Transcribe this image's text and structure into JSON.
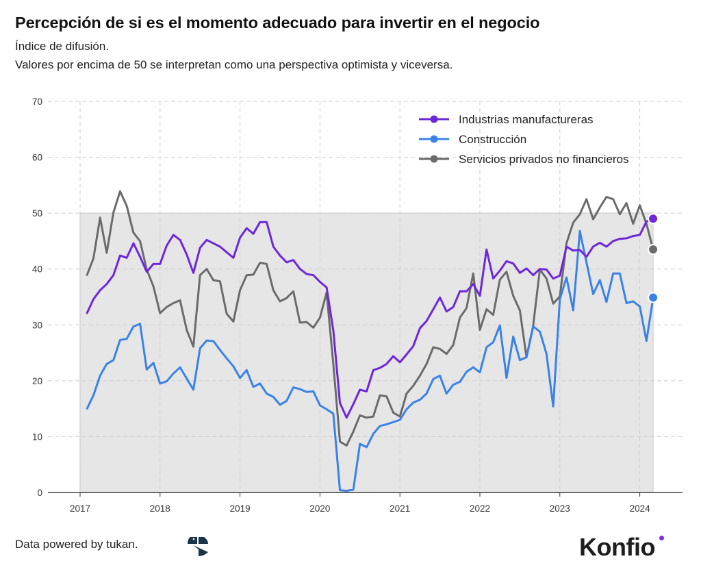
{
  "title": "Percepción de si es el momento adecuado para invertir en el negocio",
  "subtitle_1": "Índice de difusión.",
  "subtitle_2": "Valores por encima de 50 se interpretan como una perspectiva optimista y viceversa.",
  "footer": {
    "credit": "Data powered by tukan.",
    "tukan_logo": "tukan",
    "brand_logo": "Konfio"
  },
  "chart_data": {
    "type": "line",
    "title": "Percepción de si es el momento adecuado para invertir en el negocio",
    "xlabel": "",
    "ylabel": "",
    "ylim": [
      0,
      70
    ],
    "yticks": [
      0,
      10,
      20,
      30,
      40,
      50,
      60,
      70
    ],
    "xticks": [
      "2017",
      "2018",
      "2019",
      "2020",
      "2021",
      "2022",
      "2023",
      "2024"
    ],
    "xlim": [
      "2017-01",
      "2024-06"
    ],
    "grid": true,
    "legend_position": "top-right",
    "shaded_band": {
      "from": 0,
      "to": 50,
      "color": "#e6e6e6"
    },
    "x": [
      "2017-02",
      "2017-03",
      "2017-04",
      "2017-05",
      "2017-06",
      "2017-07",
      "2017-08",
      "2017-09",
      "2017-10",
      "2017-11",
      "2017-12",
      "2018-01",
      "2018-02",
      "2018-03",
      "2018-04",
      "2018-05",
      "2018-06",
      "2018-07",
      "2018-08",
      "2018-09",
      "2018-10",
      "2018-11",
      "2018-12",
      "2019-01",
      "2019-02",
      "2019-03",
      "2019-04",
      "2019-05",
      "2019-06",
      "2019-07",
      "2019-08",
      "2019-09",
      "2019-10",
      "2019-11",
      "2019-12",
      "2020-01",
      "2020-02",
      "2020-03",
      "2020-04",
      "2020-05",
      "2020-06",
      "2020-07",
      "2020-08",
      "2020-09",
      "2020-10",
      "2020-11",
      "2020-12",
      "2021-01",
      "2021-02",
      "2021-03",
      "2021-04",
      "2021-05",
      "2021-06",
      "2021-07",
      "2021-08",
      "2021-09",
      "2021-10",
      "2021-11",
      "2021-12",
      "2022-01",
      "2022-02",
      "2022-03",
      "2022-04",
      "2022-05",
      "2022-06",
      "2022-07",
      "2022-08",
      "2022-09",
      "2022-10",
      "2022-11",
      "2022-12",
      "2023-01",
      "2023-02",
      "2023-03",
      "2023-04",
      "2023-05",
      "2023-06",
      "2023-07",
      "2023-08",
      "2023-09",
      "2023-10",
      "2023-11",
      "2023-12",
      "2024-01",
      "2024-02",
      "2024-03"
    ],
    "series": [
      {
        "name": "Industrias manufactureras",
        "color": "#6d28d9",
        "values": [
          32.0,
          34.6,
          36.2,
          37.3,
          38.9,
          42.4,
          42.0,
          44.6,
          42.2,
          39.5,
          40.9,
          40.9,
          44.2,
          46.1,
          45.2,
          42.6,
          39.3,
          43.8,
          45.2,
          44.6,
          44.0,
          43.0,
          42.0,
          45.6,
          47.3,
          46.3,
          48.4,
          48.4,
          44.0,
          42.4,
          41.2,
          41.6,
          40.0,
          39.1,
          38.9,
          37.7,
          36.7,
          29.0,
          16.0,
          13.4,
          15.8,
          18.4,
          18.1,
          21.9,
          22.3,
          23.0,
          24.4,
          23.3,
          24.7,
          26.2,
          29.4,
          30.7,
          32.8,
          34.9,
          32.4,
          33.2,
          36.0,
          36.0,
          37.3,
          35.2,
          43.5,
          38.3,
          39.7,
          41.4,
          41.0,
          39.3,
          40.1,
          38.9,
          40.0,
          39.9,
          38.3,
          38.8,
          44.0,
          43.3,
          43.4,
          42.2,
          44.0,
          44.7,
          44.0,
          45.0,
          45.4,
          45.5,
          45.9,
          46.1,
          48.5,
          49.0
        ]
      },
      {
        "name": "Construcción",
        "color": "#3b82e6",
        "values": [
          14.9,
          17.4,
          20.9,
          23.0,
          23.7,
          27.3,
          27.5,
          29.7,
          30.2,
          22.0,
          23.2,
          19.5,
          19.9,
          21.3,
          22.4,
          20.4,
          18.4,
          25.8,
          27.2,
          27.1,
          25.5,
          24.0,
          22.6,
          20.5,
          21.9,
          18.9,
          19.5,
          17.7,
          17.1,
          15.7,
          16.4,
          18.8,
          18.5,
          18.0,
          18.1,
          15.6,
          14.9,
          14.1,
          0.4,
          0.3,
          0.5,
          8.7,
          8.1,
          10.5,
          11.9,
          12.2,
          12.6,
          13.0,
          14.9,
          16.1,
          16.6,
          17.7,
          20.3,
          20.9,
          17.7,
          19.3,
          19.8,
          21.6,
          22.4,
          21.5,
          26.0,
          26.9,
          29.9,
          20.5,
          27.9,
          23.7,
          24.2,
          29.7,
          28.8,
          24.8,
          15.4,
          34.6,
          38.5,
          32.6,
          46.8,
          41.2,
          35.5,
          38.0,
          34.1,
          39.2,
          39.2,
          33.9,
          34.2,
          33.3,
          27.1,
          34.9
        ]
      },
      {
        "name": "Servicios privados no financieros",
        "color": "#6b6b6b",
        "values": [
          38.8,
          41.9,
          49.2,
          42.9,
          50.1,
          53.9,
          51.3,
          46.5,
          45.0,
          39.9,
          36.9,
          32.1,
          33.2,
          33.9,
          34.4,
          29.1,
          26.1,
          38.9,
          40.0,
          38.0,
          37.8,
          32.0,
          30.6,
          36.2,
          38.9,
          39.0,
          41.1,
          40.9,
          36.2,
          34.2,
          34.8,
          36.0,
          30.4,
          30.5,
          29.5,
          31.3,
          35.8,
          23.0,
          9.1,
          8.4,
          10.9,
          13.8,
          13.4,
          13.6,
          17.4,
          17.2,
          14.3,
          13.6,
          17.7,
          19.1,
          20.9,
          23.0,
          26.0,
          25.7,
          24.8,
          26.4,
          31.3,
          33.0,
          39.2,
          29.1,
          32.8,
          31.8,
          38.1,
          39.5,
          35.2,
          32.6,
          24.2,
          29.9,
          39.9,
          38.3,
          33.8,
          35.1,
          44.6,
          48.3,
          49.8,
          52.5,
          48.9,
          51.0,
          52.9,
          52.5,
          49.8,
          51.8,
          48.1,
          51.4,
          48.1,
          43.5
        ]
      }
    ]
  }
}
